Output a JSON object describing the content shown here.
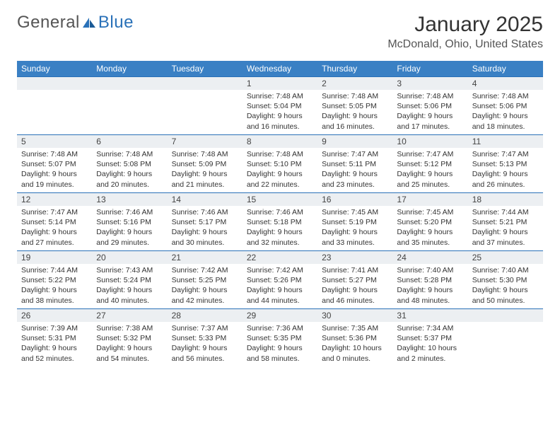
{
  "brand": {
    "name_a": "General",
    "name_b": "Blue"
  },
  "title": "January 2025",
  "location": "McDonald, Ohio, United States",
  "colors": {
    "header_bg": "#3a80c4",
    "row_border": "#2a71b8",
    "daynum_bg": "#eceff2"
  },
  "weekdays": [
    "Sunday",
    "Monday",
    "Tuesday",
    "Wednesday",
    "Thursday",
    "Friday",
    "Saturday"
  ],
  "weeks": [
    [
      null,
      null,
      null,
      {
        "n": "1",
        "sr": "7:48 AM",
        "ss": "5:04 PM",
        "dl": "9 hours and 16 minutes."
      },
      {
        "n": "2",
        "sr": "7:48 AM",
        "ss": "5:05 PM",
        "dl": "9 hours and 16 minutes."
      },
      {
        "n": "3",
        "sr": "7:48 AM",
        "ss": "5:06 PM",
        "dl": "9 hours and 17 minutes."
      },
      {
        "n": "4",
        "sr": "7:48 AM",
        "ss": "5:06 PM",
        "dl": "9 hours and 18 minutes."
      }
    ],
    [
      {
        "n": "5",
        "sr": "7:48 AM",
        "ss": "5:07 PM",
        "dl": "9 hours and 19 minutes."
      },
      {
        "n": "6",
        "sr": "7:48 AM",
        "ss": "5:08 PM",
        "dl": "9 hours and 20 minutes."
      },
      {
        "n": "7",
        "sr": "7:48 AM",
        "ss": "5:09 PM",
        "dl": "9 hours and 21 minutes."
      },
      {
        "n": "8",
        "sr": "7:48 AM",
        "ss": "5:10 PM",
        "dl": "9 hours and 22 minutes."
      },
      {
        "n": "9",
        "sr": "7:47 AM",
        "ss": "5:11 PM",
        "dl": "9 hours and 23 minutes."
      },
      {
        "n": "10",
        "sr": "7:47 AM",
        "ss": "5:12 PM",
        "dl": "9 hours and 25 minutes."
      },
      {
        "n": "11",
        "sr": "7:47 AM",
        "ss": "5:13 PM",
        "dl": "9 hours and 26 minutes."
      }
    ],
    [
      {
        "n": "12",
        "sr": "7:47 AM",
        "ss": "5:14 PM",
        "dl": "9 hours and 27 minutes."
      },
      {
        "n": "13",
        "sr": "7:46 AM",
        "ss": "5:16 PM",
        "dl": "9 hours and 29 minutes."
      },
      {
        "n": "14",
        "sr": "7:46 AM",
        "ss": "5:17 PM",
        "dl": "9 hours and 30 minutes."
      },
      {
        "n": "15",
        "sr": "7:46 AM",
        "ss": "5:18 PM",
        "dl": "9 hours and 32 minutes."
      },
      {
        "n": "16",
        "sr": "7:45 AM",
        "ss": "5:19 PM",
        "dl": "9 hours and 33 minutes."
      },
      {
        "n": "17",
        "sr": "7:45 AM",
        "ss": "5:20 PM",
        "dl": "9 hours and 35 minutes."
      },
      {
        "n": "18",
        "sr": "7:44 AM",
        "ss": "5:21 PM",
        "dl": "9 hours and 37 minutes."
      }
    ],
    [
      {
        "n": "19",
        "sr": "7:44 AM",
        "ss": "5:22 PM",
        "dl": "9 hours and 38 minutes."
      },
      {
        "n": "20",
        "sr": "7:43 AM",
        "ss": "5:24 PM",
        "dl": "9 hours and 40 minutes."
      },
      {
        "n": "21",
        "sr": "7:42 AM",
        "ss": "5:25 PM",
        "dl": "9 hours and 42 minutes."
      },
      {
        "n": "22",
        "sr": "7:42 AM",
        "ss": "5:26 PM",
        "dl": "9 hours and 44 minutes."
      },
      {
        "n": "23",
        "sr": "7:41 AM",
        "ss": "5:27 PM",
        "dl": "9 hours and 46 minutes."
      },
      {
        "n": "24",
        "sr": "7:40 AM",
        "ss": "5:28 PM",
        "dl": "9 hours and 48 minutes."
      },
      {
        "n": "25",
        "sr": "7:40 AM",
        "ss": "5:30 PM",
        "dl": "9 hours and 50 minutes."
      }
    ],
    [
      {
        "n": "26",
        "sr": "7:39 AM",
        "ss": "5:31 PM",
        "dl": "9 hours and 52 minutes."
      },
      {
        "n": "27",
        "sr": "7:38 AM",
        "ss": "5:32 PM",
        "dl": "9 hours and 54 minutes."
      },
      {
        "n": "28",
        "sr": "7:37 AM",
        "ss": "5:33 PM",
        "dl": "9 hours and 56 minutes."
      },
      {
        "n": "29",
        "sr": "7:36 AM",
        "ss": "5:35 PM",
        "dl": "9 hours and 58 minutes."
      },
      {
        "n": "30",
        "sr": "7:35 AM",
        "ss": "5:36 PM",
        "dl": "10 hours and 0 minutes."
      },
      {
        "n": "31",
        "sr": "7:34 AM",
        "ss": "5:37 PM",
        "dl": "10 hours and 2 minutes."
      },
      null
    ]
  ]
}
